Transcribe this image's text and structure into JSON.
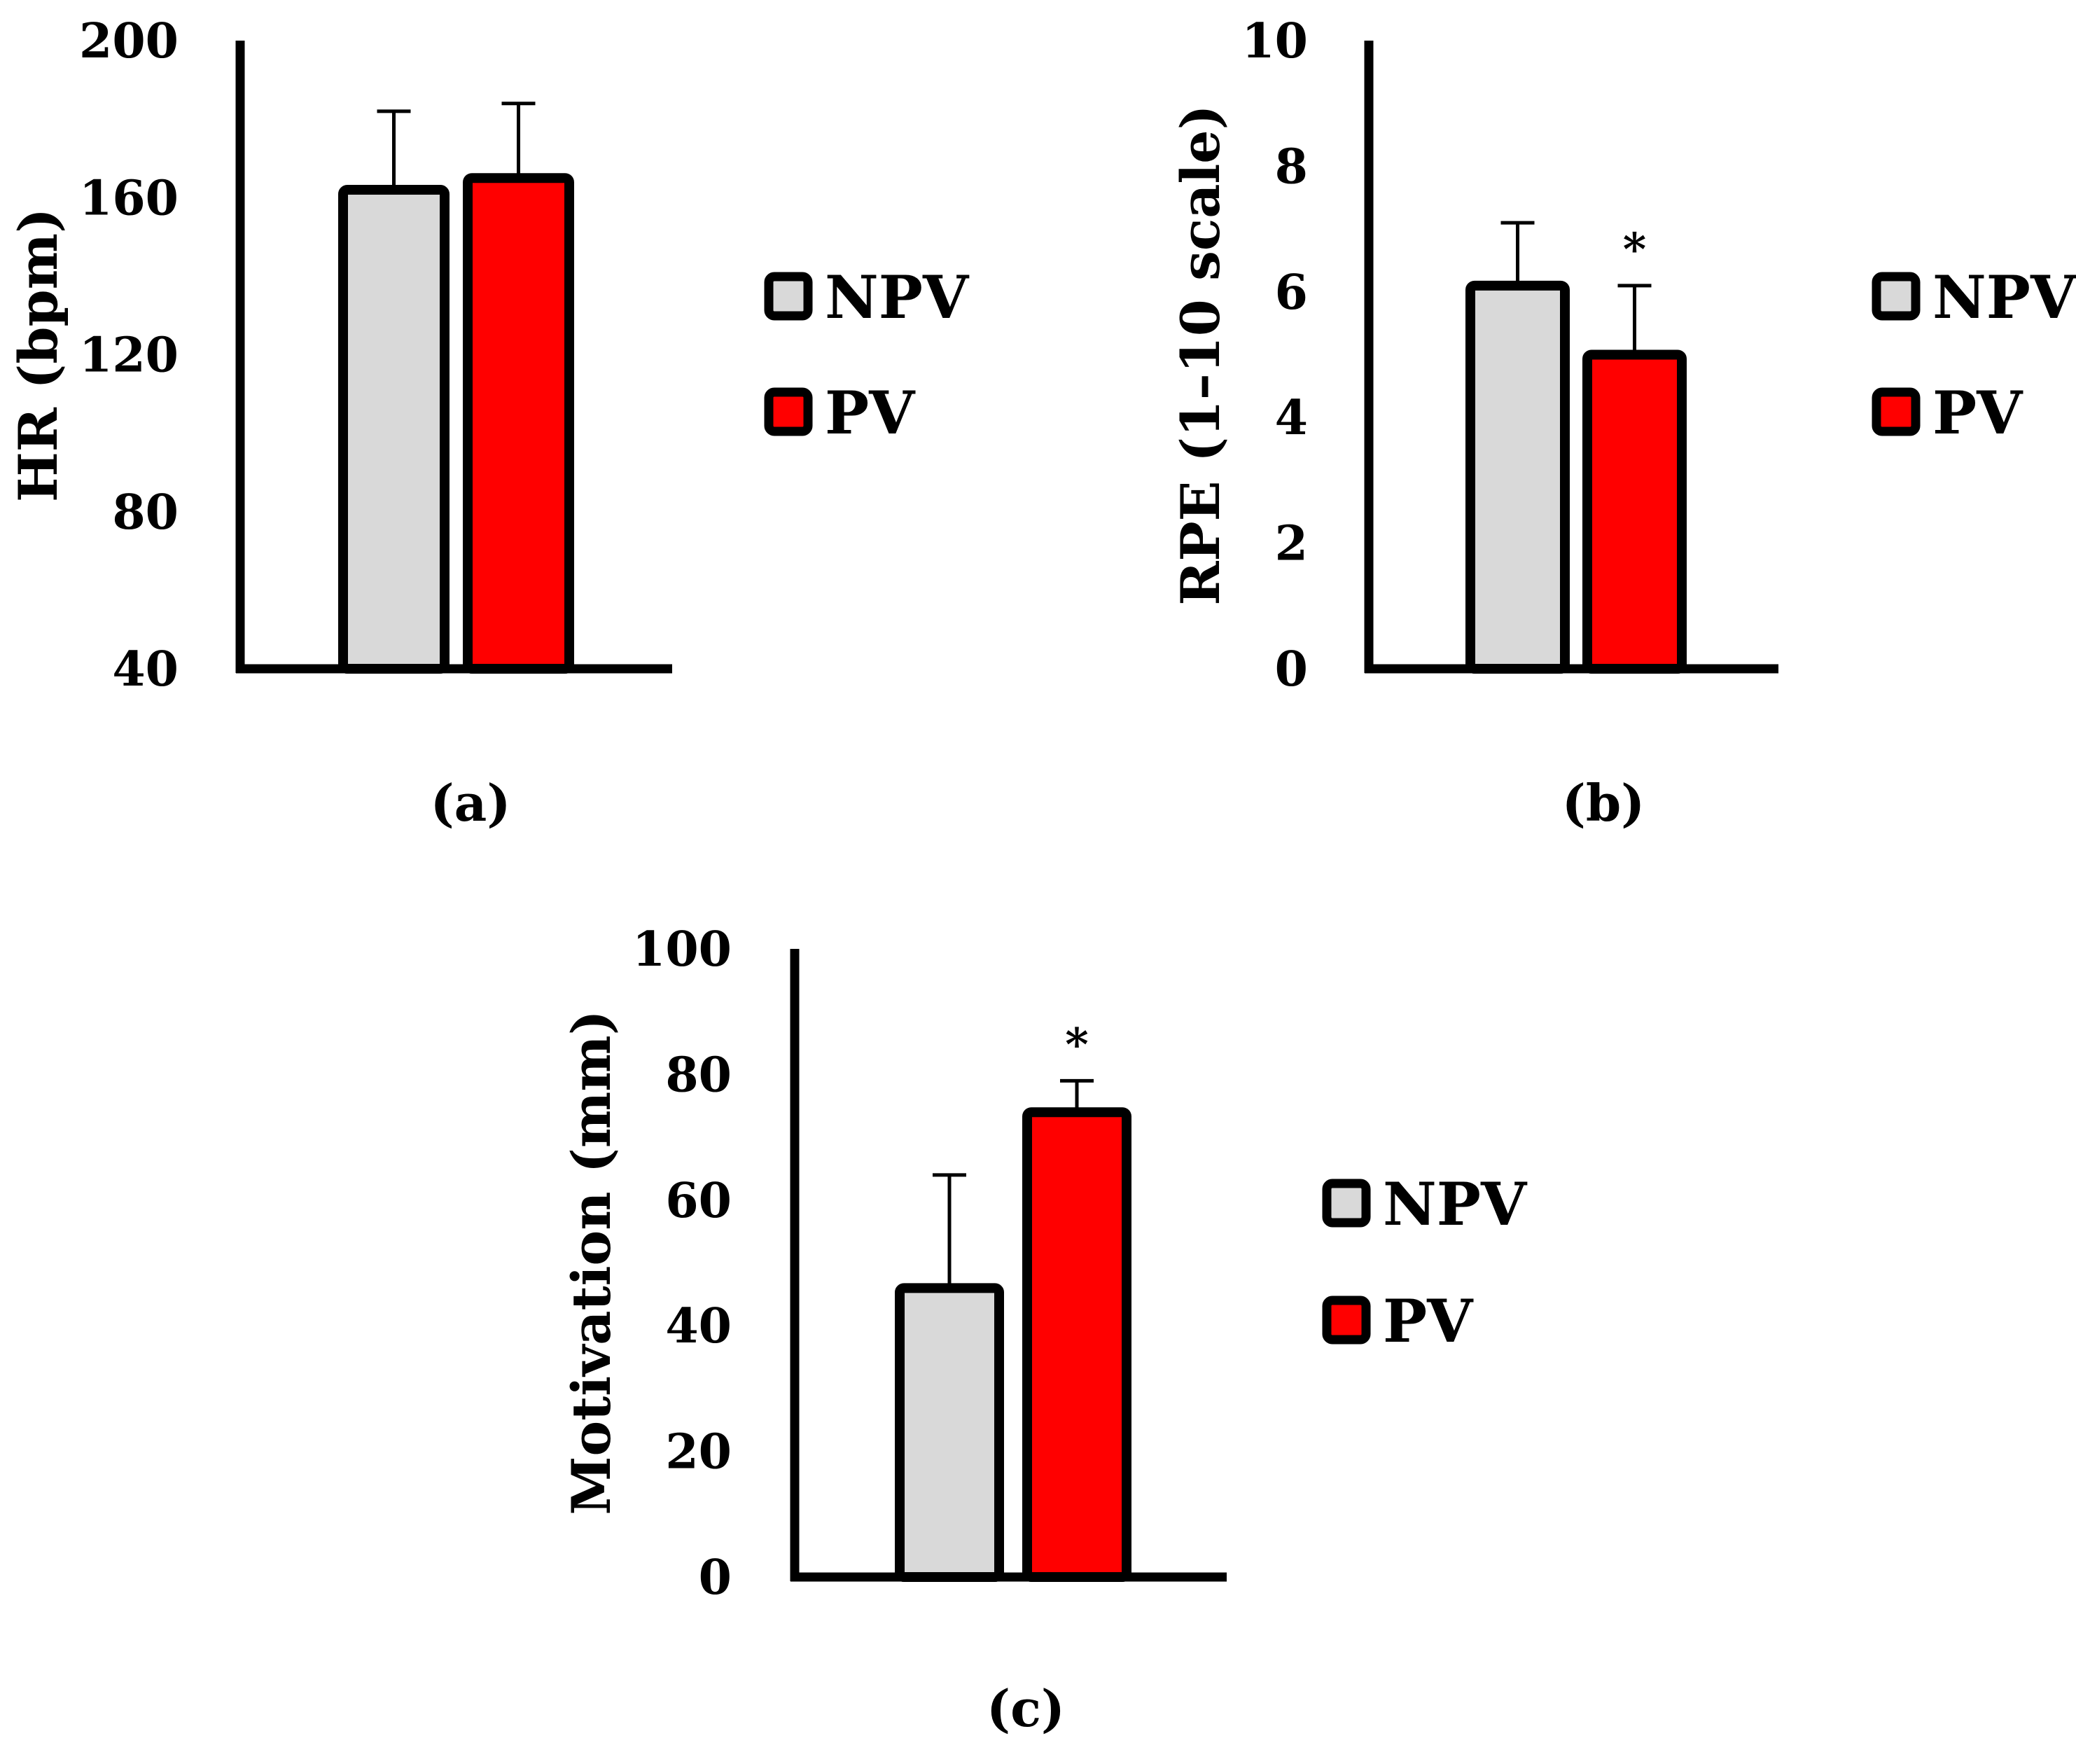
{
  "colors": {
    "npv": "#d9d9d9",
    "pv": "#ff0000",
    "stroke": "#000000"
  },
  "chart_data": [
    {
      "type": "bar",
      "panel_label": "(a)",
      "ylabel": "HR (bpm)",
      "ylim": [
        40,
        200
      ],
      "yticks": [
        "200",
        "160",
        "120",
        "80",
        "40"
      ],
      "grid": false,
      "legend": "right",
      "series": [
        {
          "name": "NPV",
          "value": 162,
          "error": 20,
          "significance": ""
        },
        {
          "name": "PV",
          "value": 165,
          "error": 19,
          "significance": ""
        }
      ]
    },
    {
      "type": "bar",
      "panel_label": "(b)",
      "ylabel": "RPE (1–10 scale)",
      "ylim": [
        0,
        10
      ],
      "yticks": [
        "10",
        "8",
        "6",
        "4",
        "2",
        "0"
      ],
      "grid": false,
      "legend": "right",
      "series": [
        {
          "name": "NPV",
          "value": 6.1,
          "error": 1.0,
          "significance": ""
        },
        {
          "name": "PV",
          "value": 5.0,
          "error": 1.1,
          "significance": "*"
        }
      ]
    },
    {
      "type": "bar",
      "panel_label": "(c)",
      "ylabel": "Motivation (mm)",
      "ylim": [
        0,
        100
      ],
      "yticks": [
        "100",
        "80",
        "60",
        "40",
        "20",
        "0"
      ],
      "grid": false,
      "legend": "right",
      "series": [
        {
          "name": "NPV",
          "value": 46,
          "error": 18,
          "significance": ""
        },
        {
          "name": "PV",
          "value": 74,
          "error": 5,
          "significance": "*"
        }
      ]
    }
  ]
}
